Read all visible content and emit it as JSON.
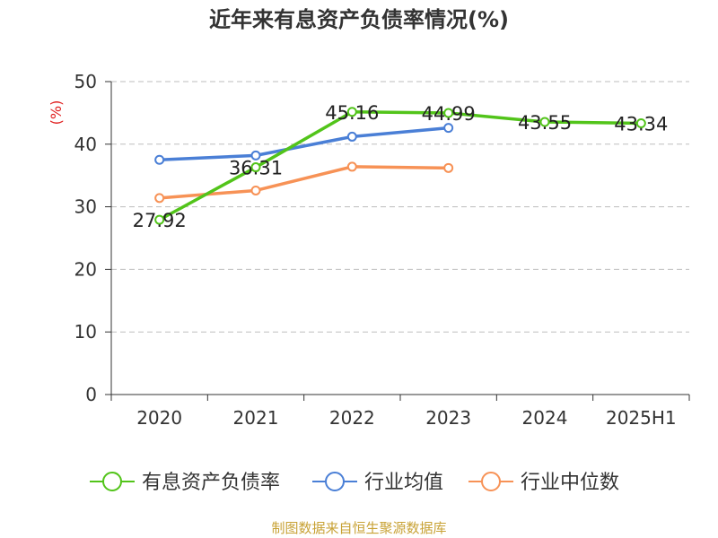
{
  "chart_data": {
    "type": "line",
    "title": "近年来有息资产负债率情况(%)",
    "ylabel": "(%)",
    "xlabel": "",
    "categories": [
      "2020",
      "2021",
      "2022",
      "2023",
      "2024",
      "2025H1"
    ],
    "ylim": [
      0,
      50
    ],
    "yticks": [
      0,
      10,
      20,
      30,
      40,
      50
    ],
    "grid": true,
    "legend_position": "bottom",
    "series": [
      {
        "name": "有息资产负债率",
        "color": "#52c41a",
        "values": [
          27.92,
          36.31,
          45.16,
          44.99,
          43.55,
          43.34
        ],
        "labels": [
          "27.92",
          "36.31",
          "45.16",
          "44.99",
          "43.55",
          "43.34"
        ]
      },
      {
        "name": "行业均值",
        "color": "#4a7fd6",
        "values": [
          37.5,
          38.2,
          41.2,
          42.6,
          null,
          null
        ]
      },
      {
        "name": "行业中位数",
        "color": "#f79256",
        "values": [
          31.4,
          32.6,
          36.4,
          36.2,
          null,
          null
        ]
      }
    ]
  },
  "source": "制图数据来自恒生聚源数据库"
}
